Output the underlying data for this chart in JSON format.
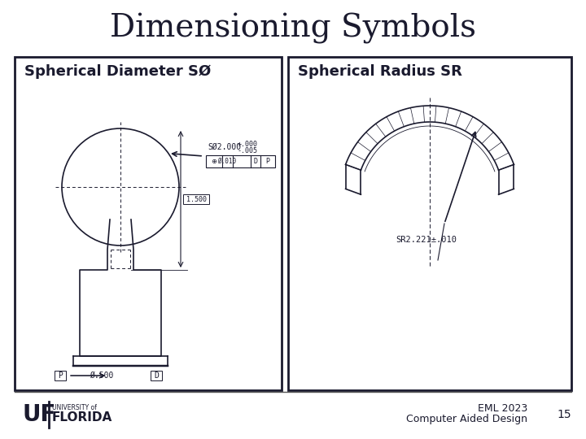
{
  "title": "Dimensioning Symbols",
  "title_fontsize": 28,
  "title_color": "#1a1a2e",
  "bg_color": "#ffffff",
  "panel_edge_color": "#1a1a2e",
  "panel_bg": "#ffffff",
  "left_label": "Spherical Diameter SØ",
  "right_label": "Spherical Radius SR",
  "label_fontsize": 13,
  "footer_left": "UF | UNIVERSITY of\n   FLORIDA",
  "footer_right_line1": "EML 2023",
  "footer_right_line2": "Computer Aided Design",
  "footer_page": "15",
  "dim_text_color": "#1a1a2e",
  "drawing_color": "#1a1a2e"
}
